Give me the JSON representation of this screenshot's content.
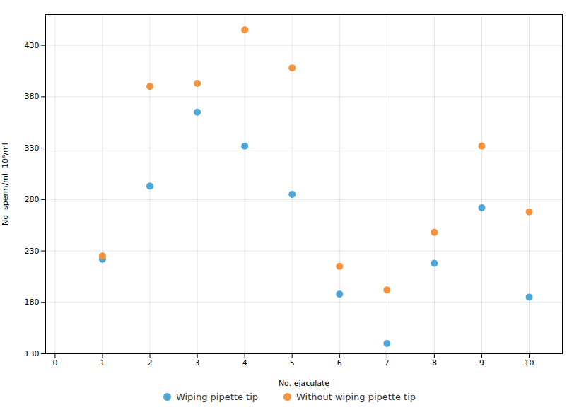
{
  "chart_data": {
    "type": "scatter",
    "xlabel": "No. ejaculate",
    "ylabel": "No  sperm/ml  10⁶/ml",
    "x": [
      1,
      2,
      3,
      4,
      5,
      6,
      7,
      8,
      9,
      10
    ],
    "series": [
      {
        "name": "Wiping pipette tip",
        "color": "#4da6d8",
        "values": [
          222,
          293,
          365,
          332,
          285,
          188,
          140,
          218,
          272,
          185
        ]
      },
      {
        "name": "Without wiping pipette tip",
        "color": "#f5923e",
        "values": [
          225,
          390,
          393,
          445,
          408,
          215,
          192,
          248,
          332,
          268
        ]
      }
    ],
    "xlim": [
      -0.2,
      10.7
    ],
    "ylim": [
      130,
      460
    ],
    "xticks": [
      0,
      1,
      2,
      3,
      4,
      5,
      6,
      7,
      8,
      9,
      10
    ],
    "yticks": [
      130,
      180,
      230,
      280,
      330,
      380,
      430
    ],
    "grid": true,
    "legend": "bottom"
  }
}
